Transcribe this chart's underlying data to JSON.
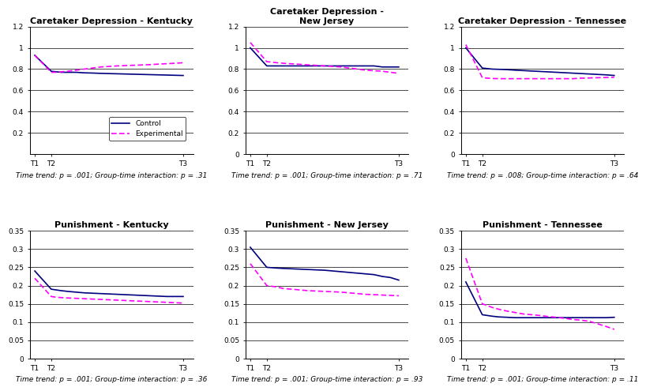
{
  "subplots": [
    {
      "title": "Caretaker Depression - Kentucky",
      "xlabels": [
        "T1",
        "T2",
        "T3"
      ],
      "control_x": [
        0,
        1,
        1.3,
        1.6,
        2.0,
        2.5,
        3.0,
        3.5,
        4.0,
        4.5,
        5.0,
        5.5,
        6.0,
        6.5,
        7.0,
        7.5,
        8.0,
        8.5,
        9.0
      ],
      "control_y": [
        0.93,
        0.78,
        0.775,
        0.77,
        0.77,
        0.77,
        0.765,
        0.763,
        0.76,
        0.758,
        0.756,
        0.754,
        0.752,
        0.75,
        0.748,
        0.746,
        0.744,
        0.742,
        0.74
      ],
      "experimental_x": [
        0,
        1,
        1.3,
        1.6,
        2.0,
        2.5,
        3.0,
        3.5,
        4.0,
        4.5,
        5.0,
        5.5,
        6.0,
        6.5,
        7.0,
        7.5,
        8.0,
        8.5,
        9.0
      ],
      "experimental_y": [
        0.93,
        0.77,
        0.77,
        0.775,
        0.78,
        0.79,
        0.8,
        0.81,
        0.82,
        0.825,
        0.83,
        0.833,
        0.836,
        0.839,
        0.842,
        0.847,
        0.851,
        0.855,
        0.86
      ],
      "ylim": [
        0.0,
        1.2
      ],
      "yticks": [
        0.2,
        0.4,
        0.6,
        0.8,
        1.0,
        1.2
      ],
      "xtick_pos": [
        0,
        1,
        9.0
      ],
      "footnote": "Time trend: p = .001; Group-time interaction: p = .31",
      "show_legend": true
    },
    {
      "title": "Caretaker Depression -\nNew Jersey",
      "xlabels": [
        "T1",
        "T2",
        "T3"
      ],
      "control_x": [
        0,
        1,
        1.3,
        1.6,
        2.0,
        2.5,
        3.0,
        3.5,
        4.0,
        4.5,
        5.0,
        5.5,
        6.0,
        6.5,
        7.0,
        7.5,
        8.0,
        8.5,
        9.0
      ],
      "control_y": [
        1.0,
        0.83,
        0.83,
        0.83,
        0.83,
        0.83,
        0.83,
        0.83,
        0.83,
        0.83,
        0.83,
        0.83,
        0.83,
        0.83,
        0.83,
        0.83,
        0.82,
        0.82,
        0.82
      ],
      "experimental_x": [
        0,
        1,
        1.3,
        1.6,
        2.0,
        2.5,
        3.0,
        3.5,
        4.0,
        4.5,
        5.0,
        5.5,
        6.0,
        6.5,
        7.0,
        7.5,
        8.0,
        8.5,
        9.0
      ],
      "experimental_y": [
        1.05,
        0.87,
        0.865,
        0.86,
        0.855,
        0.85,
        0.845,
        0.84,
        0.835,
        0.83,
        0.825,
        0.82,
        0.81,
        0.8,
        0.79,
        0.785,
        0.78,
        0.77,
        0.76
      ],
      "ylim": [
        0.0,
        1.2
      ],
      "yticks": [
        0,
        0.2,
        0.4,
        0.6,
        0.8,
        1.0,
        1.2
      ],
      "xtick_pos": [
        0,
        1,
        9.0
      ],
      "footnote": "Time trend: p = .001; Group-time interaction: p = .71",
      "show_legend": false
    },
    {
      "title": "Caretaker Depression - Tennessee",
      "xlabels": [
        "T1",
        "T2",
        "T3"
      ],
      "control_x": [
        0,
        1,
        1.3,
        1.6,
        2.0,
        2.5,
        3.0,
        3.5,
        4.0,
        4.5,
        5.0,
        5.5,
        6.0,
        6.5,
        7.0,
        7.5,
        8.0,
        8.5,
        9.0
      ],
      "control_y": [
        1.0,
        0.81,
        0.805,
        0.8,
        0.798,
        0.795,
        0.79,
        0.786,
        0.782,
        0.778,
        0.774,
        0.77,
        0.766,
        0.762,
        0.758,
        0.754,
        0.75,
        0.746,
        0.74
      ],
      "experimental_x": [
        0,
        1,
        1.3,
        1.6,
        2.0,
        2.5,
        3.0,
        3.5,
        4.0,
        4.5,
        5.0,
        5.5,
        6.0,
        6.5,
        7.0,
        7.5,
        8.0,
        8.5,
        9.0
      ],
      "experimental_y": [
        1.03,
        0.72,
        0.715,
        0.712,
        0.71,
        0.71,
        0.71,
        0.71,
        0.71,
        0.71,
        0.71,
        0.71,
        0.71,
        0.71,
        0.715,
        0.717,
        0.719,
        0.721,
        0.723
      ],
      "ylim": [
        0.0,
        1.2
      ],
      "yticks": [
        0,
        0.2,
        0.4,
        0.6,
        0.8,
        1.0,
        1.2
      ],
      "xtick_pos": [
        0,
        1,
        9.0
      ],
      "footnote": "Time trend: p = .008; Group-time interaction: p = .64",
      "show_legend": false
    },
    {
      "title": "Punishment - Kentucky",
      "xlabels": [
        "T1",
        "T2",
        "T3"
      ],
      "control_x": [
        0,
        1,
        1.3,
        1.6,
        2.0,
        2.5,
        3.0,
        3.5,
        4.0,
        4.5,
        5.0,
        5.5,
        6.0,
        6.5,
        7.0,
        7.5,
        8.0,
        8.5,
        9.0
      ],
      "control_y": [
        0.24,
        0.19,
        0.188,
        0.186,
        0.184,
        0.182,
        0.18,
        0.179,
        0.178,
        0.177,
        0.176,
        0.175,
        0.174,
        0.173,
        0.172,
        0.171,
        0.17,
        0.17,
        0.17
      ],
      "experimental_x": [
        0,
        1,
        1.3,
        1.6,
        2.0,
        2.5,
        3.0,
        3.5,
        4.0,
        4.5,
        5.0,
        5.5,
        6.0,
        6.5,
        7.0,
        7.5,
        8.0,
        8.5,
        9.0
      ],
      "experimental_y": [
        0.22,
        0.17,
        0.168,
        0.167,
        0.166,
        0.165,
        0.164,
        0.163,
        0.162,
        0.161,
        0.16,
        0.159,
        0.158,
        0.157,
        0.156,
        0.155,
        0.154,
        0.153,
        0.152
      ],
      "ylim": [
        0.0,
        0.35
      ],
      "yticks": [
        0,
        0.05,
        0.1,
        0.15,
        0.2,
        0.25,
        0.3,
        0.35
      ],
      "xtick_pos": [
        0,
        1,
        9.0
      ],
      "footnote": "Time trend: p = .001; Group-time interaction: p = .36",
      "show_legend": false
    },
    {
      "title": "Punishment - New Jersey",
      "xlabels": [
        "T1",
        "T2",
        "T3"
      ],
      "control_x": [
        0,
        1,
        1.3,
        1.6,
        2.0,
        2.5,
        3.0,
        3.5,
        4.0,
        4.5,
        5.0,
        5.5,
        6.0,
        6.5,
        7.0,
        7.5,
        8.0,
        8.5,
        9.0
      ],
      "control_y": [
        0.305,
        0.25,
        0.249,
        0.248,
        0.247,
        0.246,
        0.245,
        0.244,
        0.243,
        0.242,
        0.24,
        0.238,
        0.236,
        0.234,
        0.232,
        0.23,
        0.225,
        0.222,
        0.215
      ],
      "experimental_x": [
        0,
        1,
        1.3,
        1.6,
        2.0,
        2.5,
        3.0,
        3.5,
        4.0,
        4.5,
        5.0,
        5.5,
        6.0,
        6.5,
        7.0,
        7.5,
        8.0,
        8.5,
        9.0
      ],
      "experimental_y": [
        0.26,
        0.2,
        0.198,
        0.196,
        0.192,
        0.19,
        0.188,
        0.186,
        0.185,
        0.184,
        0.183,
        0.182,
        0.18,
        0.178,
        0.176,
        0.175,
        0.174,
        0.173,
        0.172
      ],
      "ylim": [
        0.0,
        0.35
      ],
      "yticks": [
        0,
        0.05,
        0.1,
        0.15,
        0.2,
        0.25,
        0.3,
        0.35
      ],
      "xtick_pos": [
        0,
        1,
        9.0
      ],
      "footnote": "Time trend: p = .001; Group-time interaction: p = .93",
      "show_legend": false
    },
    {
      "title": "Punishment - Tennessee",
      "xlabels": [
        "T1",
        "T2",
        "T3"
      ],
      "control_x": [
        0,
        1,
        1.3,
        1.6,
        2.0,
        2.5,
        3.0,
        3.5,
        4.0,
        4.5,
        5.0,
        5.5,
        6.0,
        6.5,
        7.0,
        7.5,
        8.0,
        8.5,
        9.0
      ],
      "control_y": [
        0.21,
        0.12,
        0.118,
        0.116,
        0.114,
        0.113,
        0.112,
        0.112,
        0.112,
        0.112,
        0.112,
        0.112,
        0.112,
        0.112,
        0.112,
        0.112,
        0.112,
        0.112,
        0.113
      ],
      "experimental_x": [
        0,
        1,
        1.3,
        1.6,
        2.0,
        2.5,
        3.0,
        3.5,
        4.0,
        4.5,
        5.0,
        5.5,
        6.0,
        6.5,
        7.0,
        7.5,
        8.0,
        8.5,
        9.0
      ],
      "experimental_y": [
        0.275,
        0.15,
        0.145,
        0.14,
        0.135,
        0.13,
        0.126,
        0.122,
        0.12,
        0.118,
        0.115,
        0.113,
        0.11,
        0.107,
        0.105,
        0.102,
        0.095,
        0.088,
        0.08
      ],
      "ylim": [
        0.0,
        0.35
      ],
      "yticks": [
        0,
        0.05,
        0.1,
        0.15,
        0.2,
        0.25,
        0.3,
        0.35
      ],
      "xtick_pos": [
        0,
        1,
        9.0
      ],
      "footnote": "Time trend: p = .001; Group-time interaction: p = .11",
      "show_legend": false
    }
  ],
  "control_color": "#000080",
  "experimental_color": "#FF00FF",
  "control_lw": 1.2,
  "experimental_lw": 1.2,
  "bg_color": "#FFFFFF",
  "footnote_fontsize": 6.5,
  "title_fontsize": 8,
  "tick_fontsize": 6.5,
  "legend_fontsize": 6.5
}
